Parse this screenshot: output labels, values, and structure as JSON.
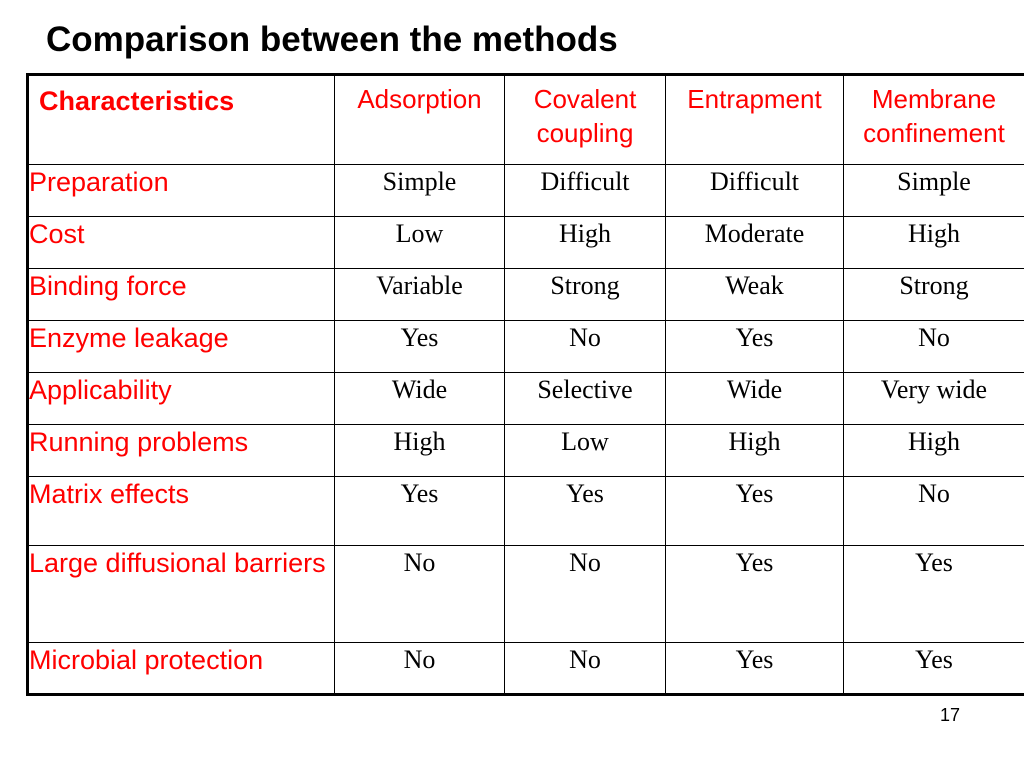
{
  "slide": {
    "title": "Comparison between the methods",
    "page_number": "17"
  },
  "table": {
    "header": {
      "corner": "Characteristics",
      "methods": [
        "Adsorption",
        "Covalent coupling",
        "Entrapment",
        "Membrane confinement"
      ]
    },
    "rows": [
      {
        "label": "Preparation",
        "values": [
          "Simple",
          "Difficult",
          "Difficult",
          "Simple"
        ]
      },
      {
        "label": "Cost",
        "values": [
          "Low",
          "High",
          "Moderate",
          "High"
        ]
      },
      {
        "label": "Binding force",
        "values": [
          "Variable",
          "Strong",
          "Weak",
          "Strong"
        ]
      },
      {
        "label": "Enzyme leakage",
        "values": [
          "Yes",
          "No",
          "Yes",
          "No"
        ]
      },
      {
        "label": "Applicability",
        "values": [
          "Wide",
          "Selective",
          "Wide",
          "Very wide"
        ]
      },
      {
        "label": "Running problems",
        "values": [
          "High",
          "Low",
          "High",
          "High"
        ]
      },
      {
        "label": "Matrix effects",
        "values": [
          "Yes",
          "Yes",
          "Yes",
          "No"
        ]
      },
      {
        "label": "Large diffusional barriers",
        "values": [
          "No",
          "No",
          "Yes",
          "Yes"
        ]
      },
      {
        "label": "Microbial protection",
        "values": [
          "No",
          "No",
          "Yes",
          "Yes"
        ]
      }
    ]
  },
  "colors": {
    "label_red": "#ff0000",
    "text_black": "#000000",
    "background": "#ffffff"
  }
}
